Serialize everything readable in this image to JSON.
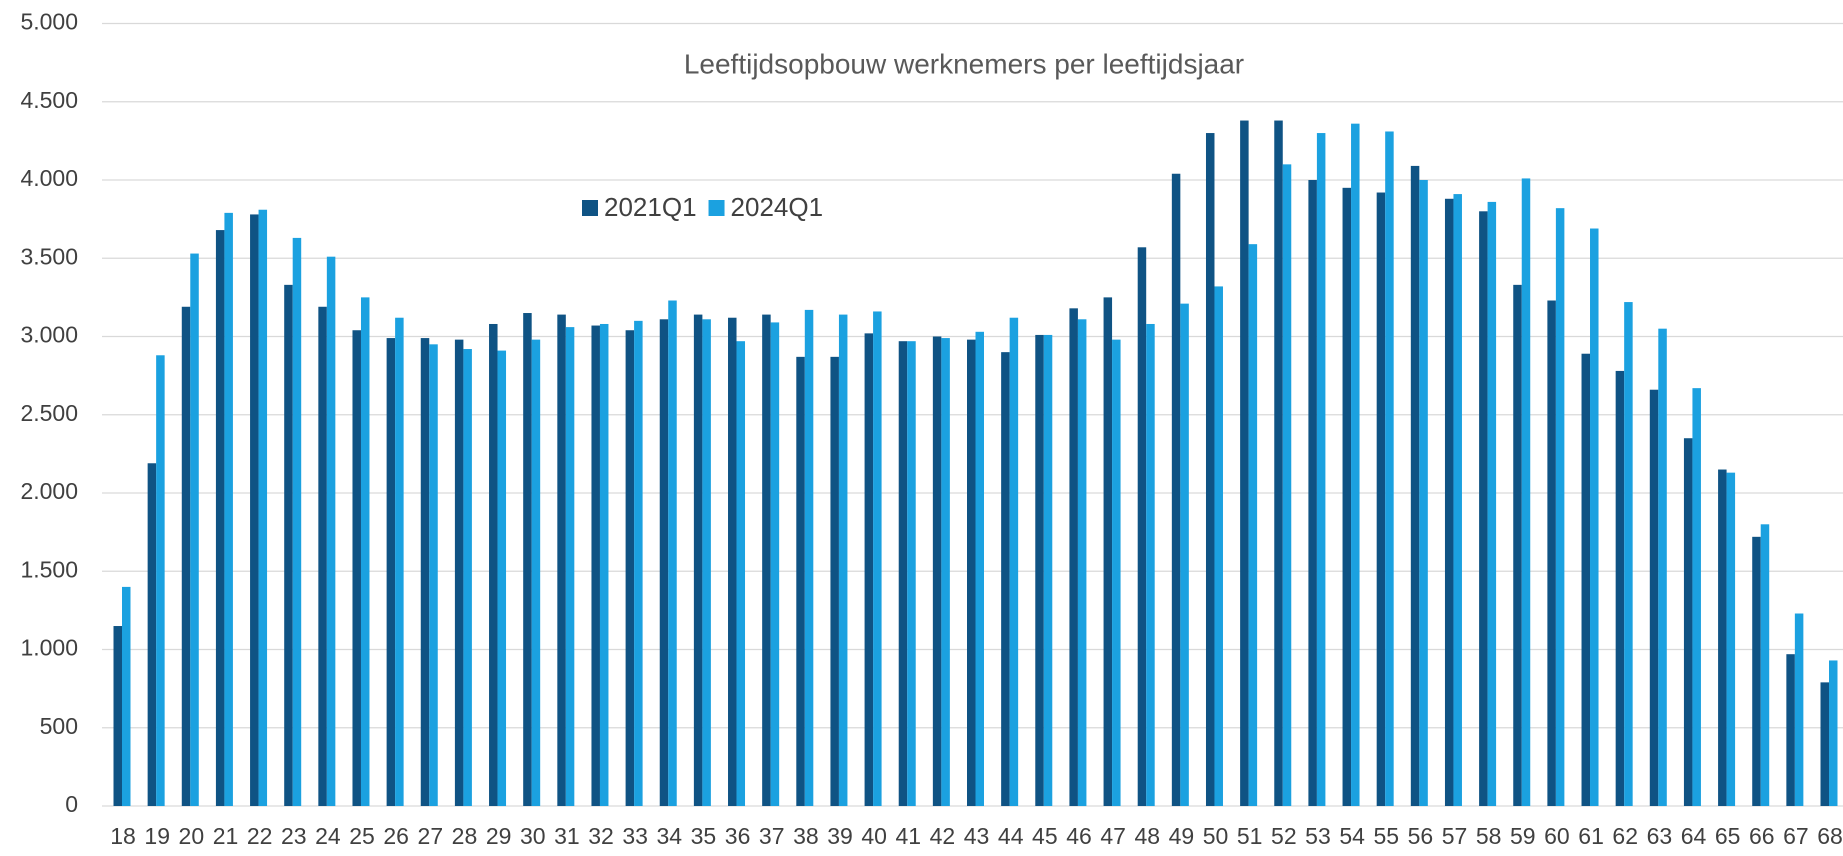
{
  "chart_data": {
    "type": "bar",
    "title": "Leeftijdsopbouw werknemers per leeftijdsjaar",
    "categories": [
      "18",
      "19",
      "20",
      "21",
      "22",
      "23",
      "24",
      "25",
      "26",
      "27",
      "28",
      "29",
      "30",
      "31",
      "32",
      "33",
      "34",
      "35",
      "36",
      "37",
      "38",
      "39",
      "40",
      "41",
      "42",
      "43",
      "44",
      "45",
      "46",
      "47",
      "48",
      "49",
      "50",
      "51",
      "52",
      "53",
      "54",
      "55",
      "56",
      "57",
      "58",
      "59",
      "60",
      "61",
      "62",
      "63",
      "64",
      "65",
      "66",
      "67",
      "68"
    ],
    "series": [
      {
        "name": "2021Q1",
        "color": "#0f5384",
        "values": [
          1150,
          2190,
          3190,
          3680,
          3780,
          3330,
          3190,
          3040,
          2990,
          2990,
          2980,
          3080,
          3150,
          3140,
          3070,
          3040,
          3110,
          3140,
          3120,
          3140,
          2870,
          2870,
          3020,
          2970,
          3000,
          2980,
          2900,
          3010,
          3180,
          3250,
          3570,
          4040,
          4300,
          4380,
          4380,
          4000,
          3950,
          3920,
          4090,
          3880,
          3800,
          3330,
          3230,
          2890,
          2780,
          2660,
          2350,
          2150,
          1720,
          970,
          790
        ]
      },
      {
        "name": "2024Q1",
        "color": "#1ba1e0",
        "values": [
          1400,
          2880,
          3530,
          3790,
          3810,
          3630,
          3510,
          3250,
          3120,
          2950,
          2920,
          2910,
          2980,
          3060,
          3080,
          3100,
          3230,
          3110,
          2970,
          3090,
          3170,
          3140,
          3160,
          2970,
          2990,
          3030,
          3120,
          3010,
          3110,
          2980,
          3080,
          3210,
          3320,
          3590,
          4100,
          4300,
          4360,
          4310,
          4000,
          3910,
          3860,
          4010,
          3820,
          3690,
          3220,
          3050,
          2670,
          2130,
          1800,
          1230,
          930
        ]
      }
    ],
    "ylim": [
      0,
      5000
    ],
    "yticks": [
      0,
      500,
      {
        "value": 1000,
        "label": "1.000"
      },
      {
        "value": 1500,
        "label": "1.500"
      },
      {
        "value": 2000,
        "label": "2.000"
      },
      {
        "value": 2500,
        "label": "2.500"
      },
      {
        "value": 3000,
        "label": "3.000"
      },
      {
        "value": 3500,
        "label": "3.500"
      },
      {
        "value": 4000,
        "label": "4.000"
      },
      {
        "value": 4500,
        "label": "4.500"
      },
      {
        "value": 5000,
        "label": "5.000"
      }
    ],
    "grid": true
  }
}
